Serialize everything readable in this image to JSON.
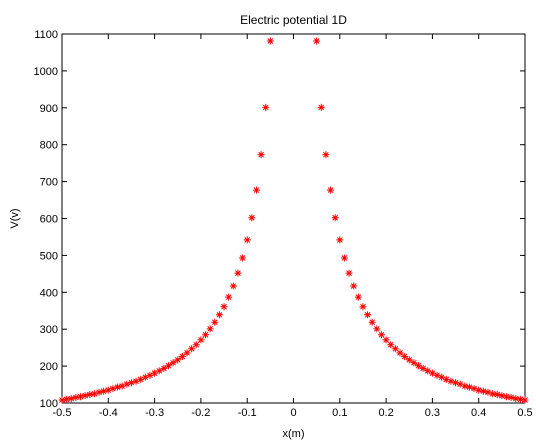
{
  "chart_data": {
    "type": "scatter",
    "title": "Electric potential 1D",
    "xlabel": "x(m)",
    "ylabel": "V(v)",
    "xlim": [
      -0.5,
      0.5
    ],
    "ylim": [
      100,
      1100
    ],
    "xticks": [
      "-0.5",
      "-0.4",
      "-0.3",
      "-0.2",
      "-0.1",
      "0",
      "0.1",
      "0.2",
      "0.3",
      "0.4",
      "0.5"
    ],
    "yticks": [
      "100",
      "200",
      "300",
      "400",
      "500",
      "600",
      "700",
      "800",
      "900",
      "1000",
      "1100"
    ],
    "grid": false,
    "marker": "asterisk",
    "marker_color": "#ff0000",
    "series": [
      {
        "x": [
          -0.5,
          -0.49,
          -0.48,
          -0.47,
          -0.46,
          -0.45,
          -0.44,
          -0.43,
          -0.42,
          -0.41,
          -0.4,
          -0.39,
          -0.38,
          -0.37,
          -0.36,
          -0.35,
          -0.34,
          -0.33,
          -0.32,
          -0.31,
          -0.3,
          -0.29,
          -0.28,
          -0.27,
          -0.26,
          -0.25,
          -0.24,
          -0.23,
          -0.22,
          -0.21,
          -0.2,
          -0.19,
          -0.18,
          -0.17,
          -0.16,
          -0.15,
          -0.14,
          -0.13,
          -0.12,
          -0.11,
          -0.1,
          -0.09,
          -0.08,
          -0.07,
          -0.06,
          -0.05,
          0.05,
          0.06,
          0.07,
          0.08,
          0.09,
          0.1,
          0.11,
          0.12,
          0.13,
          0.14,
          0.15,
          0.16,
          0.17,
          0.18,
          0.19,
          0.2,
          0.21,
          0.22,
          0.23,
          0.24,
          0.25,
          0.26,
          0.27,
          0.28,
          0.29,
          0.3,
          0.31,
          0.32,
          0.33,
          0.34,
          0.35,
          0.36,
          0.37,
          0.38,
          0.39,
          0.4,
          0.41,
          0.42,
          0.43,
          0.44,
          0.45,
          0.46,
          0.47,
          0.48,
          0.49,
          0.5
        ],
        "y": [
          108,
          110,
          112,
          115,
          117,
          120,
          123,
          125,
          129,
          132,
          135,
          139,
          143,
          146,
          151,
          155,
          159,
          164,
          170,
          175,
          181,
          187,
          194,
          201,
          209,
          217,
          226,
          236,
          247,
          258,
          271,
          285,
          301,
          319,
          339,
          361,
          387,
          417,
          452,
          493,
          542,
          602,
          677,
          773,
          901,
          1081,
          1081,
          901,
          773,
          677,
          602,
          542,
          493,
          452,
          417,
          387,
          361,
          339,
          319,
          301,
          285,
          271,
          258,
          247,
          236,
          226,
          217,
          209,
          201,
          194,
          187,
          181,
          175,
          170,
          164,
          159,
          155,
          151,
          146,
          143,
          139,
          135,
          132,
          129,
          125,
          123,
          120,
          117,
          115,
          112,
          110,
          108
        ]
      }
    ]
  }
}
